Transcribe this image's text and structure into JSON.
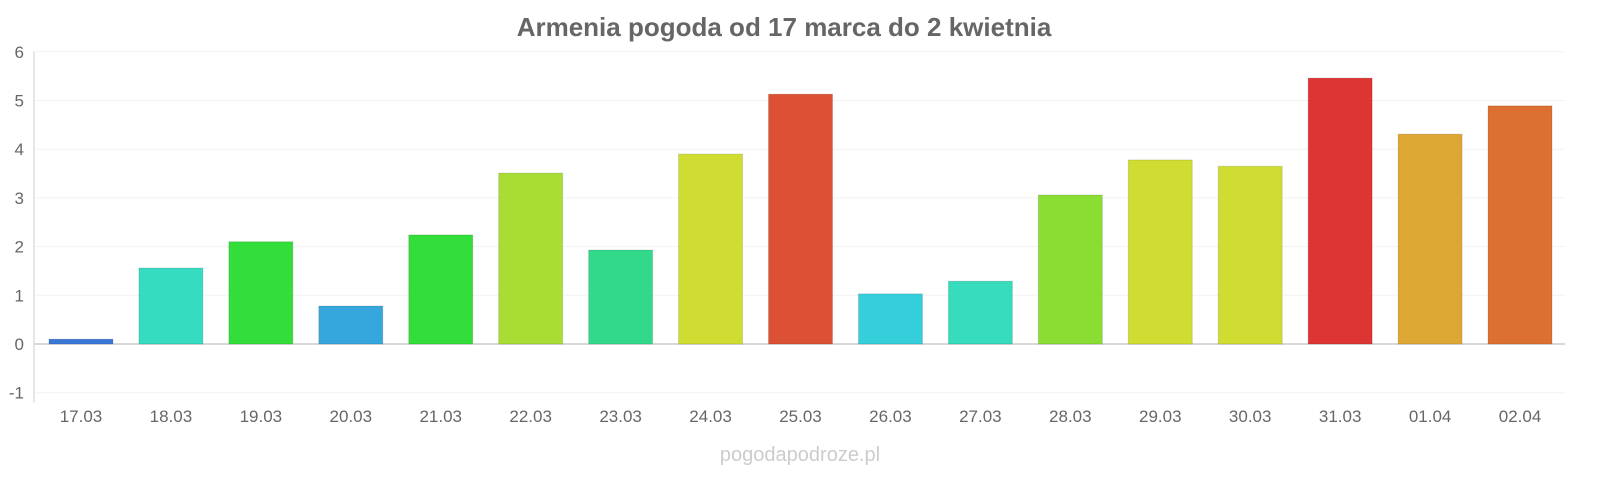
{
  "chart_data": {
    "type": "bar",
    "title": "Armenia pogoda od 17 marca do 2 kwietnia",
    "xlabel": "",
    "ylabel": "",
    "ylim": [
      -1,
      6
    ],
    "yticks": [
      "6",
      "5",
      "4",
      "3",
      "2",
      "1",
      "0",
      "-1"
    ],
    "grid": true,
    "categories": [
      "17.03",
      "18.03",
      "19.03",
      "20.03",
      "21.03",
      "22.03",
      "23.03",
      "24.03",
      "25.03",
      "26.03",
      "27.03",
      "28.03",
      "29.03",
      "30.03",
      "31.03",
      "01.04",
      "02.04"
    ],
    "values": [
      0.1,
      1.56,
      2.1,
      0.78,
      2.24,
      3.51,
      1.93,
      3.9,
      5.13,
      1.03,
      1.29,
      3.06,
      3.78,
      3.65,
      5.46,
      4.31,
      4.89
    ],
    "colors": [
      "#3a78d8",
      "#36dcc0",
      "#33dd3a",
      "#35a7dc",
      "#33dd3a",
      "#a9dd33",
      "#33d98a",
      "#cfdd33",
      "#dc5033",
      "#35cfdc",
      "#36dcbb",
      "#8add33",
      "#cfdd33",
      "#cfdd33",
      "#dc3533",
      "#dca833",
      "#dc7033"
    ]
  },
  "watermark": "pogodapodroze.pl"
}
